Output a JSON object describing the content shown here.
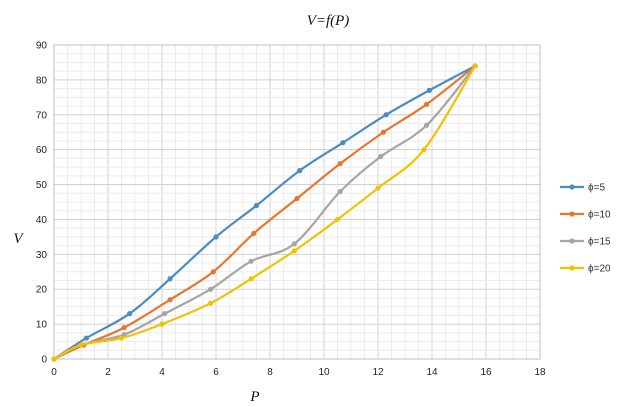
{
  "chart_data": {
    "type": "line",
    "title": "V=f(P)",
    "xlabel": "P",
    "ylabel": "V",
    "xlim": [
      0,
      18
    ],
    "ylim": [
      0,
      90
    ],
    "xticks": [
      "0",
      "2",
      "4",
      "6",
      "8",
      "10",
      "12",
      "14",
      "16",
      "18"
    ],
    "yticks": [
      "0",
      "10",
      "20",
      "30",
      "40",
      "50",
      "60",
      "70",
      "80",
      "90"
    ],
    "grid": true,
    "legend_position": "right",
    "series": [
      {
        "name": "ϕ=5",
        "color": "#4A8DC2",
        "x": [
          0,
          1.2,
          2.8,
          4.3,
          6.0,
          7.5,
          9.1,
          10.7,
          12.3,
          13.9,
          15.6
        ],
        "y": [
          0,
          6,
          13,
          23,
          35,
          44,
          54,
          62,
          70,
          77,
          84
        ]
      },
      {
        "name": "ϕ=10",
        "color": "#E8762E",
        "x": [
          0,
          1.1,
          2.6,
          4.3,
          5.9,
          7.4,
          9.0,
          10.6,
          12.2,
          13.8,
          15.6
        ],
        "y": [
          0,
          4,
          9,
          17,
          25,
          36,
          46,
          56,
          65,
          73,
          84
        ]
      },
      {
        "name": "ϕ=15",
        "color": "#A5A5A5",
        "x": [
          0,
          1.0,
          2.6,
          4.1,
          5.8,
          7.3,
          8.9,
          10.6,
          12.1,
          13.8,
          15.6
        ],
        "y": [
          0,
          4,
          7,
          13,
          20,
          28,
          33,
          48,
          58,
          67,
          84
        ]
      },
      {
        "name": "ϕ=20",
        "color": "#F2C200",
        "x": [
          0,
          1.0,
          2.5,
          4.0,
          5.8,
          7.3,
          8.9,
          10.5,
          12.0,
          13.7,
          15.6
        ],
        "y": [
          0,
          4,
          6,
          10,
          16,
          23,
          31,
          40,
          49,
          60,
          84
        ]
      }
    ]
  }
}
